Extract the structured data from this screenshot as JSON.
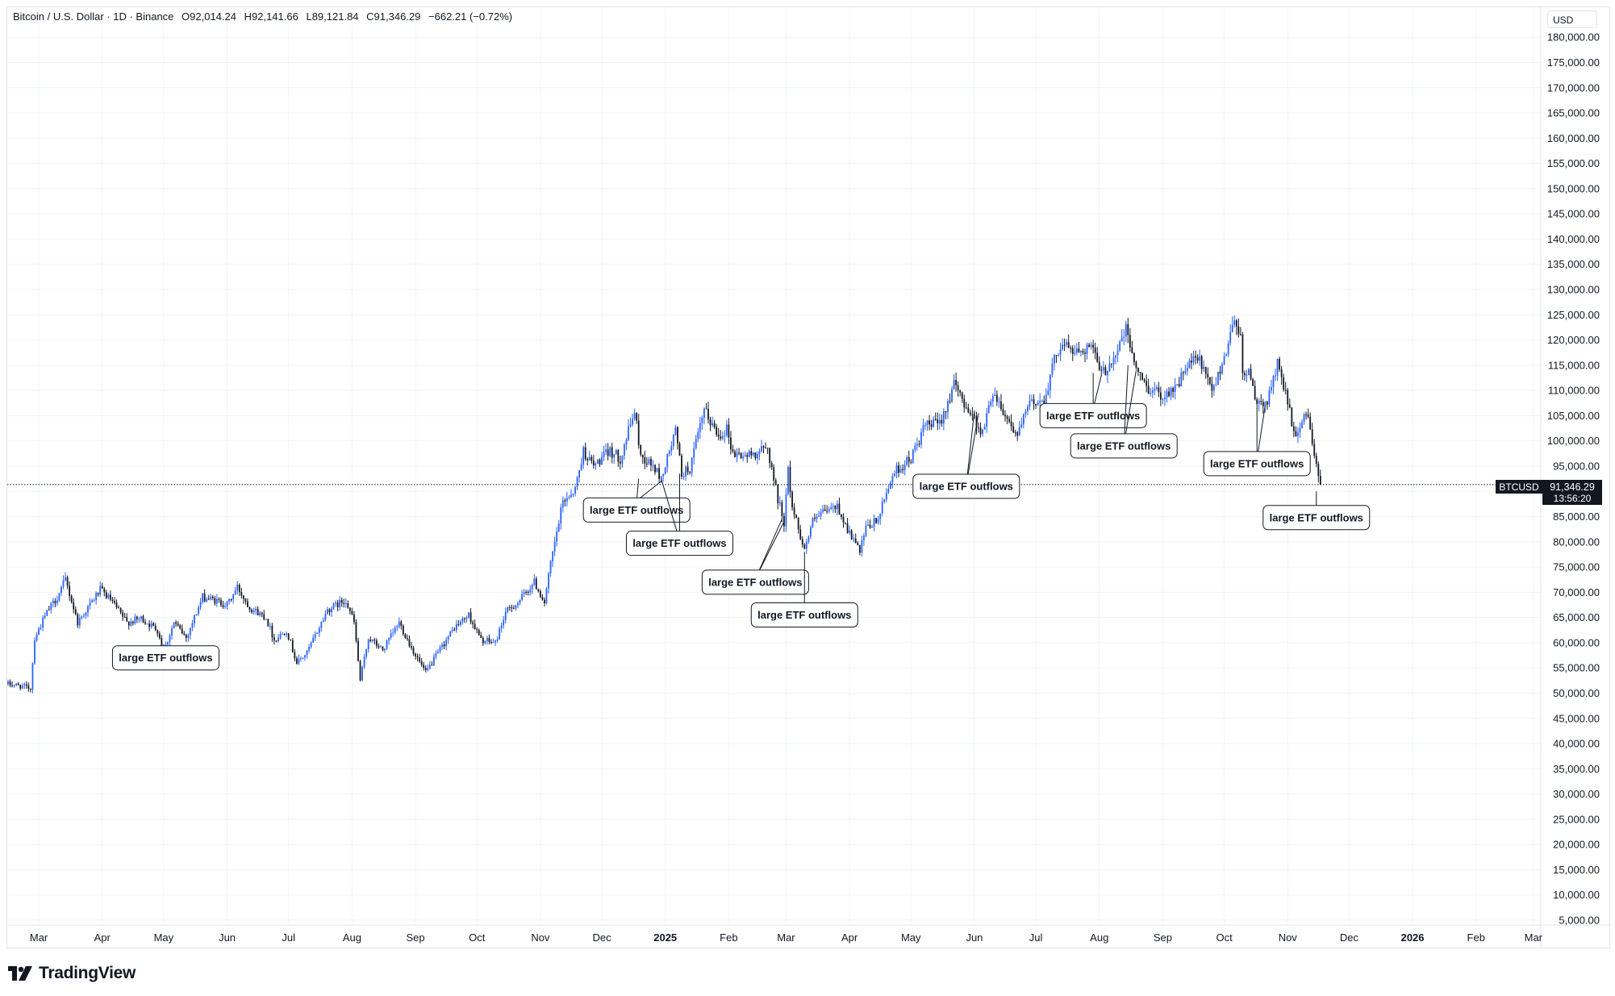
{
  "header": {
    "symbol": "Bitcoin / U.S. Dollar · 1D · Binance",
    "open": "O92,014.24",
    "high": "H92,141.66",
    "low": "L89,121.84",
    "close": "C91,346.29",
    "change": "−662.21 (−0.72%)",
    "currency": "USD"
  },
  "price_tag": {
    "ticker": "BTCUSD",
    "price": "91,346.29",
    "countdown": "13:56:20"
  },
  "footer": {
    "brand": "TradingView"
  },
  "colors": {
    "up": "#2962ff",
    "down": "#131722",
    "grid": "#f0f3fa",
    "axis_text": "#131722"
  },
  "chart_data": {
    "type": "candlestick",
    "ylim": [
      0,
      185000
    ],
    "y_ticks": [
      "180,000.00",
      "175,000.00",
      "170,000.00",
      "165,000.00",
      "160,000.00",
      "155,000.00",
      "150,000.00",
      "145,000.00",
      "140,000.00",
      "135,000.00",
      "130,000.00",
      "125,000.00",
      "120,000.00",
      "115,000.00",
      "110,000.00",
      "105,000.00",
      "100,000.00",
      "95,000.00",
      "90,000.00",
      "85,000.00",
      "80,000.00",
      "75,000.00",
      "70,000.00",
      "65,000.00",
      "60,000.00",
      "55,000.00",
      "50,000.00",
      "45,000.00",
      "40,000.00",
      "35,000.00",
      "30,000.00",
      "25,000.00",
      "20,000.00",
      "15,000.00",
      "10,000.00",
      "5,000.00"
    ],
    "x_range": [
      "2024-02-15",
      "2026-03-20"
    ],
    "x_ticks": [
      {
        "label": "Mar",
        "date": "2024-03-01"
      },
      {
        "label": "Apr",
        "date": "2024-04-01"
      },
      {
        "label": "May",
        "date": "2024-05-01"
      },
      {
        "label": "Jun",
        "date": "2024-06-01"
      },
      {
        "label": "Jul",
        "date": "2024-07-01"
      },
      {
        "label": "Aug",
        "date": "2024-08-01"
      },
      {
        "label": "Sep",
        "date": "2024-09-01"
      },
      {
        "label": "Oct",
        "date": "2024-10-01"
      },
      {
        "label": "Nov",
        "date": "2024-11-01"
      },
      {
        "label": "Dec",
        "date": "2024-12-01"
      },
      {
        "label": "2025",
        "date": "2025-01-01",
        "bold": true
      },
      {
        "label": "Feb",
        "date": "2025-02-01"
      },
      {
        "label": "Mar",
        "date": "2025-03-01"
      },
      {
        "label": "Apr",
        "date": "2025-04-01"
      },
      {
        "label": "May",
        "date": "2025-05-01"
      },
      {
        "label": "Jun",
        "date": "2025-06-01"
      },
      {
        "label": "Jul",
        "date": "2025-07-01"
      },
      {
        "label": "Aug",
        "date": "2025-08-01"
      },
      {
        "label": "Sep",
        "date": "2025-09-01"
      },
      {
        "label": "Oct",
        "date": "2025-10-01"
      },
      {
        "label": "Nov",
        "date": "2025-11-01"
      },
      {
        "label": "Dec",
        "date": "2025-12-01"
      },
      {
        "label": "2026",
        "date": "2026-01-01",
        "bold": true
      },
      {
        "label": "Feb",
        "date": "2026-02-01"
      },
      {
        "label": "Mar",
        "date": "2026-03-01"
      }
    ],
    "price_path": [
      [
        "2024-02-15",
        51800
      ],
      [
        "2024-02-20",
        51500
      ],
      [
        "2024-02-26",
        51000
      ],
      [
        "2024-02-28",
        61000
      ],
      [
        "2024-03-05",
        66000
      ],
      [
        "2024-03-10",
        69000
      ],
      [
        "2024-03-14",
        72500
      ],
      [
        "2024-03-20",
        64000
      ],
      [
        "2024-03-25",
        67000
      ],
      [
        "2024-03-31",
        70500
      ],
      [
        "2024-04-05",
        68500
      ],
      [
        "2024-04-13",
        64000
      ],
      [
        "2024-04-20",
        64800
      ],
      [
        "2024-04-28",
        62500
      ],
      [
        "2024-05-01",
        58300
      ],
      [
        "2024-05-06",
        64000
      ],
      [
        "2024-05-12",
        61000
      ],
      [
        "2024-05-20",
        69000
      ],
      [
        "2024-05-25",
        68500
      ],
      [
        "2024-06-01",
        67500
      ],
      [
        "2024-06-06",
        71000
      ],
      [
        "2024-06-12",
        67000
      ],
      [
        "2024-06-20",
        65000
      ],
      [
        "2024-06-24",
        60500
      ],
      [
        "2024-06-30",
        62500
      ],
      [
        "2024-07-05",
        56000
      ],
      [
        "2024-07-10",
        58000
      ],
      [
        "2024-07-20",
        66500
      ],
      [
        "2024-07-29",
        68500
      ],
      [
        "2024-08-02",
        64000
      ],
      [
        "2024-08-05",
        52500
      ],
      [
        "2024-08-09",
        61000
      ],
      [
        "2024-08-16",
        58500
      ],
      [
        "2024-08-24",
        64000
      ],
      [
        "2024-08-30",
        59000
      ],
      [
        "2024-09-06",
        54000
      ],
      [
        "2024-09-12",
        58000
      ],
      [
        "2024-09-20",
        63000
      ],
      [
        "2024-09-27",
        65500
      ],
      [
        "2024-10-03",
        60500
      ],
      [
        "2024-10-10",
        60000
      ],
      [
        "2024-10-15",
        66000
      ],
      [
        "2024-10-21",
        68000
      ],
      [
        "2024-10-29",
        72000
      ],
      [
        "2024-11-03",
        68000
      ],
      [
        "2024-11-06",
        75500
      ],
      [
        "2024-11-12",
        88000
      ],
      [
        "2024-11-18",
        90500
      ],
      [
        "2024-11-22",
        98000
      ],
      [
        "2024-11-27",
        95000
      ],
      [
        "2024-12-05",
        98000
      ],
      [
        "2024-12-10",
        96500
      ],
      [
        "2024-12-17",
        106000
      ],
      [
        "2024-12-20",
        97000
      ],
      [
        "2024-12-26",
        95000
      ],
      [
        "2024-12-30",
        92500
      ],
      [
        "2025-01-06",
        102000
      ],
      [
        "2025-01-09",
        93500
      ],
      [
        "2025-01-13",
        94500
      ],
      [
        "2025-01-20",
        106000
      ],
      [
        "2025-01-27",
        101000
      ],
      [
        "2025-01-31",
        102500
      ],
      [
        "2025-02-03",
        97500
      ],
      [
        "2025-02-10",
        97000
      ],
      [
        "2025-02-20",
        98500
      ],
      [
        "2025-02-25",
        88500
      ],
      [
        "2025-02-28",
        84000
      ],
      [
        "2025-03-02",
        94000
      ],
      [
        "2025-03-04",
        87000
      ],
      [
        "2025-03-10",
        78500
      ],
      [
        "2025-03-14",
        84000
      ],
      [
        "2025-03-20",
        86000
      ],
      [
        "2025-03-26",
        87000
      ],
      [
        "2025-03-31",
        82500
      ],
      [
        "2025-04-06",
        78000
      ],
      [
        "2025-04-09",
        82500
      ],
      [
        "2025-04-15",
        84500
      ],
      [
        "2025-04-22",
        93500
      ],
      [
        "2025-05-01",
        96500
      ],
      [
        "2025-05-08",
        103000
      ],
      [
        "2025-05-15",
        103500
      ],
      [
        "2025-05-22",
        111000
      ],
      [
        "2025-05-28",
        107000
      ],
      [
        "2025-06-05",
        101500
      ],
      [
        "2025-06-10",
        110000
      ],
      [
        "2025-06-17",
        104500
      ],
      [
        "2025-06-22",
        101000
      ],
      [
        "2025-06-28",
        107500
      ],
      [
        "2025-07-05",
        108000
      ],
      [
        "2025-07-11",
        117500
      ],
      [
        "2025-07-14",
        119500
      ],
      [
        "2025-07-20",
        117500
      ],
      [
        "2025-07-28",
        119000
      ],
      [
        "2025-08-02",
        113000
      ],
      [
        "2025-08-08",
        116500
      ],
      [
        "2025-08-14",
        122000
      ],
      [
        "2025-08-20",
        113000
      ],
      [
        "2025-08-25",
        110500
      ],
      [
        "2025-09-01",
        109000
      ],
      [
        "2025-09-08",
        111000
      ],
      [
        "2025-09-14",
        115500
      ],
      [
        "2025-09-19",
        116000
      ],
      [
        "2025-09-25",
        109500
      ],
      [
        "2025-10-02",
        118000
      ],
      [
        "2025-10-06",
        124500
      ],
      [
        "2025-10-09",
        121000
      ],
      [
        "2025-10-10",
        113000
      ],
      [
        "2025-10-14",
        113500
      ],
      [
        "2025-10-17",
        106500
      ],
      [
        "2025-10-22",
        108000
      ],
      [
        "2025-10-27",
        115000
      ],
      [
        "2025-10-31",
        110000
      ],
      [
        "2025-11-04",
        101000
      ],
      [
        "2025-11-06",
        102000
      ],
      [
        "2025-11-10",
        106000
      ],
      [
        "2025-11-13",
        99500
      ],
      [
        "2025-11-15",
        95500
      ],
      [
        "2025-11-17",
        91346.29
      ]
    ],
    "annotations": [
      {
        "text": "large ETF outflows",
        "label_date": "2024-05-02",
        "label_price": 57000,
        "targets": [
          [
            "2024-05-01",
            59000
          ]
        ]
      },
      {
        "text": "large ETF outflows",
        "label_date": "2024-12-18",
        "label_price": 86300,
        "targets": [
          [
            "2024-12-19",
            92500
          ],
          [
            "2024-12-30",
            92000
          ]
        ]
      },
      {
        "text": "large ETF outflows",
        "label_date": "2025-01-08",
        "label_price": 79700,
        "targets": [
          [
            "2024-12-30",
            92500
          ],
          [
            "2025-01-08",
            93500
          ]
        ]
      },
      {
        "text": "large ETF outflows",
        "label_date": "2025-02-14",
        "label_price": 72000,
        "targets": [
          [
            "2025-02-27",
            84500
          ],
          [
            "2025-02-28",
            84000
          ]
        ]
      },
      {
        "text": "large ETF outflows",
        "label_date": "2025-03-10",
        "label_price": 65500,
        "targets": [
          [
            "2025-03-10",
            78000
          ]
        ]
      },
      {
        "text": "large ETF outflows",
        "label_date": "2025-05-28",
        "label_price": 91000,
        "targets": [
          [
            "2025-06-01",
            106000
          ],
          [
            "2025-06-03",
            105500
          ]
        ]
      },
      {
        "text": "large ETF outflows",
        "label_date": "2025-07-29",
        "label_price": 105000,
        "targets": [
          [
            "2025-07-29",
            113500
          ],
          [
            "2025-08-02",
            113000
          ]
        ]
      },
      {
        "text": "large ETF outflows",
        "label_date": "2025-08-13",
        "label_price": 99000,
        "targets": [
          [
            "2025-08-15",
            115000
          ],
          [
            "2025-08-19",
            114000
          ]
        ]
      },
      {
        "text": "large ETF outflows",
        "label_date": "2025-10-17",
        "label_price": 95500,
        "targets": [
          [
            "2025-10-17",
            106500
          ],
          [
            "2025-10-21",
            107000
          ]
        ]
      },
      {
        "text": "large ETF outflows",
        "label_date": "2025-11-15",
        "label_price": 84800,
        "targets": [
          [
            "2025-11-15",
            90000
          ]
        ]
      }
    ]
  }
}
